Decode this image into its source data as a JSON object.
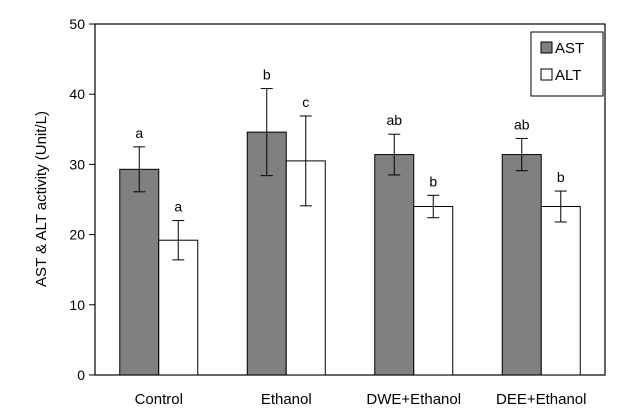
{
  "chart_data": {
    "type": "bar",
    "ylabel": "AST & ALT activity (Unit/L)",
    "xlabel": "",
    "ylim": [
      0,
      50
    ],
    "yticks": [
      0,
      10,
      20,
      30,
      40,
      50
    ],
    "grid": false,
    "legend_position": "top-right",
    "categories": [
      "Control",
      "Ethanol",
      "DWE+Ethanol",
      "DEE+Ethanol"
    ],
    "series": [
      {
        "name": "AST",
        "color": "#808080",
        "values": [
          29.3,
          34.6,
          31.4,
          31.4
        ],
        "errors": [
          3.2,
          6.2,
          2.9,
          2.3
        ],
        "letters": [
          "a",
          "b",
          "ab",
          "ab"
        ]
      },
      {
        "name": "ALT",
        "color": "#ffffff",
        "values": [
          19.2,
          30.5,
          24.0,
          24.0
        ],
        "errors": [
          2.8,
          6.4,
          1.6,
          2.2
        ],
        "letters": [
          "a",
          "c",
          "b",
          "b"
        ]
      }
    ]
  }
}
